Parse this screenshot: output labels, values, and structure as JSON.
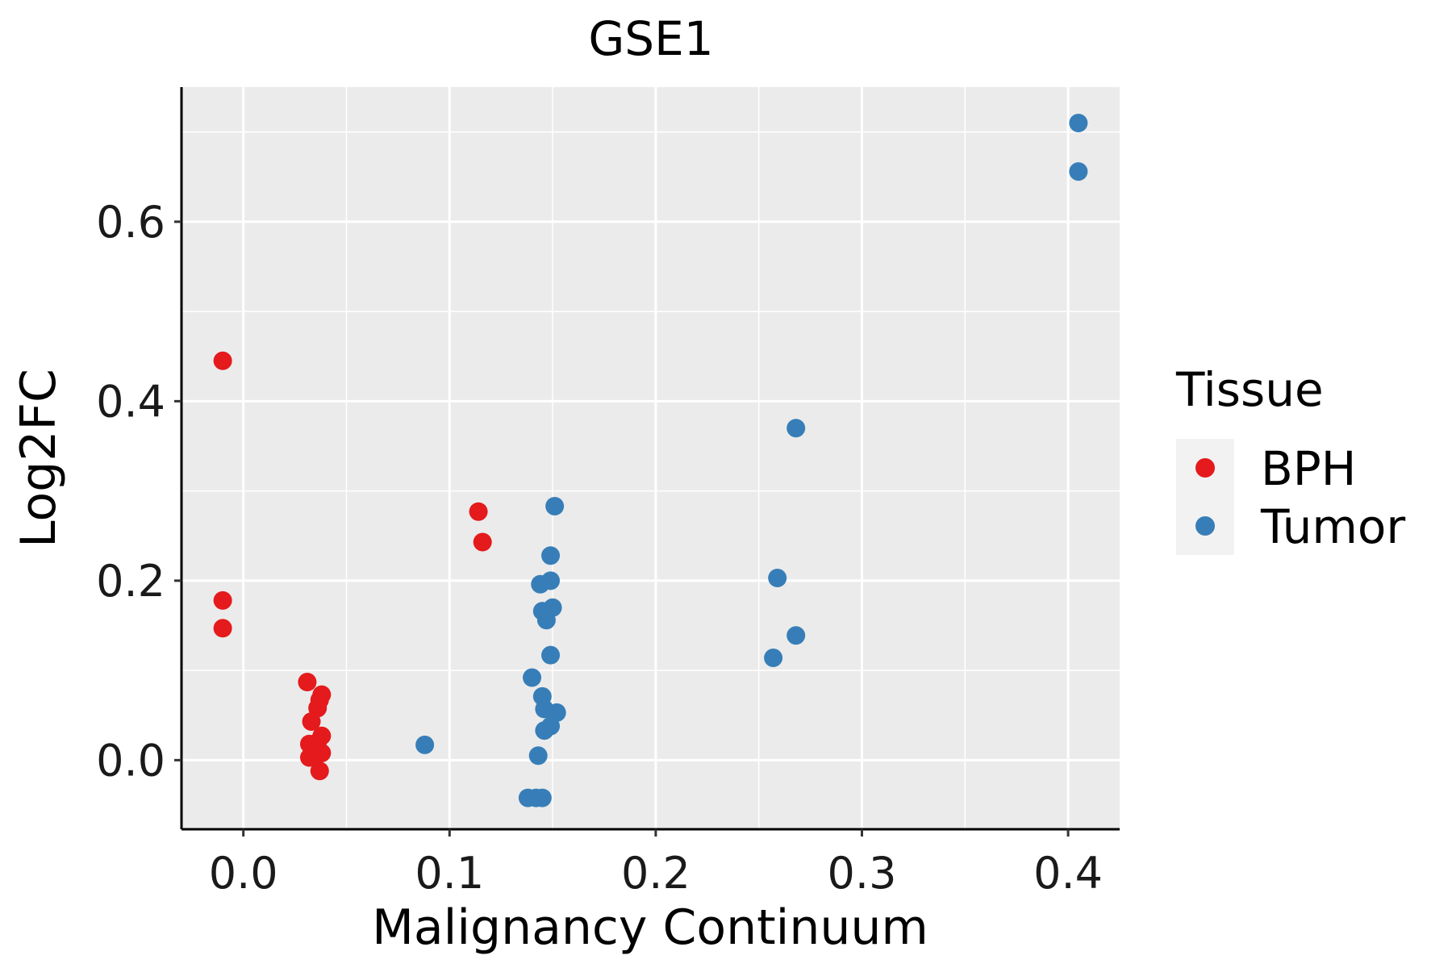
{
  "chart_data": {
    "type": "scatter",
    "title": "GSE1",
    "xlabel": "Malignancy Continuum",
    "ylabel": "Log2FC",
    "xlim": [
      -0.03,
      0.425
    ],
    "ylim": [
      -0.077,
      0.75
    ],
    "x_ticks": [
      0.0,
      0.1,
      0.2,
      0.3,
      0.4
    ],
    "x_tick_labels": [
      "0.0",
      "0.1",
      "0.2",
      "0.3",
      "0.4"
    ],
    "y_ticks": [
      0.0,
      0.2,
      0.4,
      0.6
    ],
    "y_tick_labels": [
      "0.0",
      "0.2",
      "0.4",
      "0.6"
    ],
    "grid": true,
    "legend": {
      "title": "Tissue",
      "position": "right",
      "entries": [
        {
          "name": "BPH",
          "color": "#E41A1C"
        },
        {
          "name": "Tumor",
          "color": "#377EB8"
        }
      ]
    },
    "series": [
      {
        "name": "BPH",
        "color": "#E41A1C",
        "points": [
          [
            -0.01,
            0.445
          ],
          [
            -0.01,
            0.178
          ],
          [
            -0.01,
            0.147
          ],
          [
            0.114,
            0.277
          ],
          [
            0.116,
            0.243
          ],
          [
            0.031,
            0.087
          ],
          [
            0.038,
            0.073
          ],
          [
            0.037,
            0.067
          ],
          [
            0.036,
            0.058
          ],
          [
            0.033,
            0.043
          ],
          [
            0.032,
            0.018
          ],
          [
            0.038,
            0.027
          ],
          [
            0.036,
            0.02
          ],
          [
            0.032,
            0.003
          ],
          [
            0.035,
            0.008
          ],
          [
            0.038,
            0.008
          ],
          [
            0.037,
            -0.012
          ]
        ]
      },
      {
        "name": "Tumor",
        "color": "#377EB8",
        "points": [
          [
            0.405,
            0.71
          ],
          [
            0.405,
            0.656
          ],
          [
            0.268,
            0.37
          ],
          [
            0.259,
            0.203
          ],
          [
            0.268,
            0.139
          ],
          [
            0.257,
            0.114
          ],
          [
            0.151,
            0.283
          ],
          [
            0.149,
            0.228
          ],
          [
            0.149,
            0.2
          ],
          [
            0.144,
            0.196
          ],
          [
            0.15,
            0.17
          ],
          [
            0.145,
            0.166
          ],
          [
            0.147,
            0.156
          ],
          [
            0.149,
            0.117
          ],
          [
            0.14,
            0.092
          ],
          [
            0.145,
            0.071
          ],
          [
            0.146,
            0.057
          ],
          [
            0.152,
            0.053
          ],
          [
            0.149,
            0.038
          ],
          [
            0.146,
            0.033
          ],
          [
            0.143,
            0.005
          ],
          [
            0.088,
            0.017
          ],
          [
            0.138,
            -0.042
          ],
          [
            0.142,
            -0.042
          ],
          [
            0.145,
            -0.042
          ]
        ]
      }
    ]
  }
}
